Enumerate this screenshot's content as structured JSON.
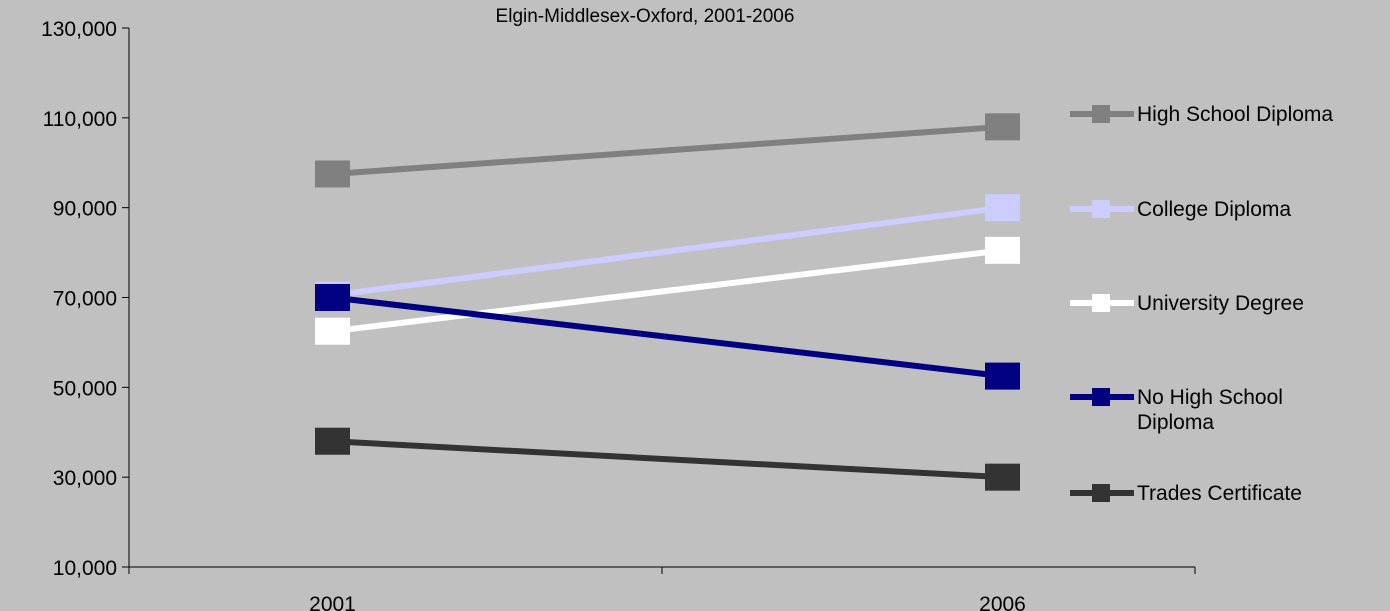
{
  "chart_data": {
    "type": "line",
    "title": "Elgin-Middlesex-Oxford, 2001-2006",
    "categories": [
      "2001",
      "2006"
    ],
    "ylim": [
      10000,
      130000
    ],
    "yticks": [
      10000,
      30000,
      50000,
      70000,
      90000,
      110000,
      130000
    ],
    "ytick_labels": [
      "10,000",
      "30,000",
      "50,000",
      "70,000",
      "90,000",
      "110,000",
      "130,000"
    ],
    "grid": false,
    "legend_position": "right",
    "series": [
      {
        "name": "High School Diploma",
        "values": [
          97500,
          108000
        ],
        "color": "#808080"
      },
      {
        "name": "College Diploma",
        "values": [
          70500,
          90000
        ],
        "color": "#ccccff"
      },
      {
        "name": "University Degree",
        "values": [
          62500,
          80500
        ],
        "color": "#ffffff"
      },
      {
        "name": "No High School Diploma",
        "legend_lines": [
          "No High School",
          "Diploma"
        ],
        "values": [
          70000,
          52500
        ],
        "color": "#000080"
      },
      {
        "name": "Trades Certificate",
        "values": [
          38000,
          30000
        ],
        "color": "#333333"
      }
    ]
  }
}
